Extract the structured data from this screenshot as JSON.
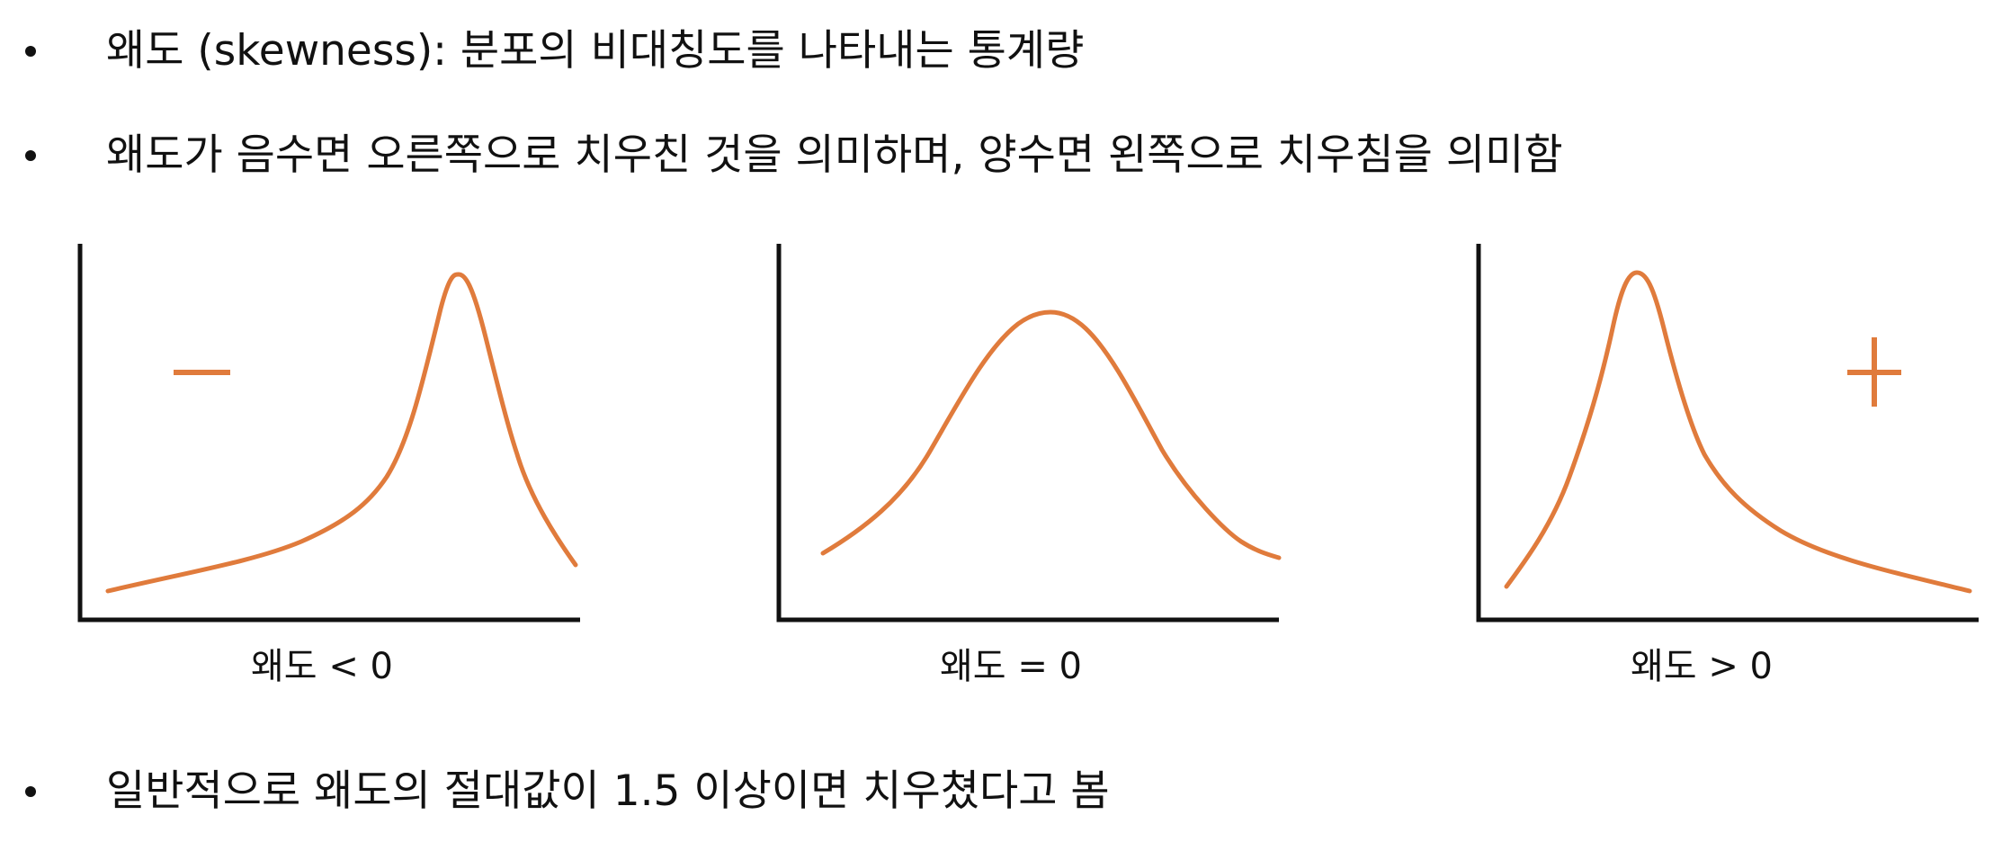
{
  "bullets": [
    {
      "text": "왜도 (skewness): 분포의 비대칭도를 나타내는 통계량"
    },
    {
      "text": "왜도가 음수면 오른쪽으로 치우친 것을 의미하며, 양수면 왼쪽으로 치우침을 의미함"
    },
    {
      "text": "일반적으로 왜도의 절대값이 1.5 이상이면 치우쳤다고 봄"
    }
  ],
  "panels": [
    {
      "caption": "왜도 < 0",
      "sign_icon": "minus-icon"
    },
    {
      "caption": "왜도 = 0",
      "sign_icon": "none"
    },
    {
      "caption": "왜도 > 0",
      "sign_icon": "plus-icon"
    }
  ],
  "colors": {
    "curve": "#E07B3C",
    "axis": "#111111",
    "text": "#111111"
  }
}
